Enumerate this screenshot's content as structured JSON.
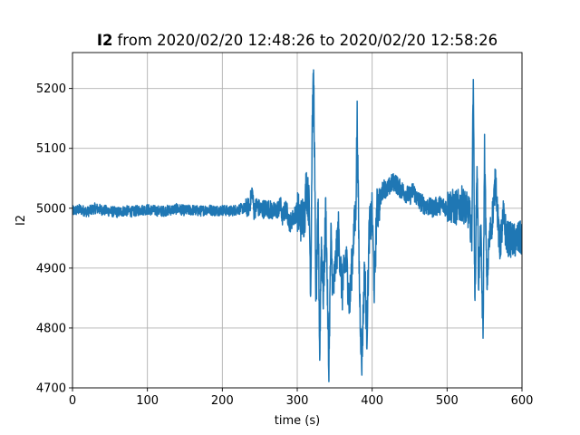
{
  "chart_data": {
    "type": "line",
    "title_bold": "I2",
    "title_rest": "from 2020/02/20 12:48:26 to 2020/02/20 12:58:26",
    "xlabel": "time (s)",
    "ylabel": "I2",
    "xlim": [
      0,
      600
    ],
    "ylim": [
      4700,
      5260
    ],
    "xticks": [
      0,
      100,
      200,
      300,
      400,
      500,
      600
    ],
    "yticks": [
      4700,
      4800,
      4900,
      5000,
      5100,
      5200
    ],
    "grid": true,
    "line_color": "#1f77b4",
    "series": [
      {
        "x": [
          0,
          10,
          20,
          30,
          40,
          50,
          60,
          70,
          80,
          90,
          100,
          110,
          120,
          130,
          140,
          150,
          160,
          170,
          180,
          190,
          200,
          210,
          220,
          230,
          236,
          240,
          242,
          246,
          250,
          260,
          270,
          278,
          280,
          285,
          290,
          300,
          305,
          310,
          312,
          316,
          318,
          320,
          322,
          325,
          328,
          330,
          332,
          335,
          338,
          340,
          342,
          345,
          348,
          350,
          355,
          360,
          365,
          370,
          375,
          378,
          380,
          383,
          386,
          390,
          393,
          396,
          400,
          403,
          406,
          410,
          415,
          420,
          425,
          430,
          435,
          440,
          445,
          450,
          455,
          460,
          470,
          480,
          490,
          500,
          505,
          510,
          515,
          520,
          525,
          530,
          533,
          535,
          537,
          540,
          542,
          545,
          548,
          550,
          553,
          556,
          560,
          565,
          570,
          575,
          580,
          590,
          600
        ],
        "y": [
          4995,
          4998,
          4994,
          5000,
          4997,
          4995,
          4993,
          4996,
          4994,
          4997,
          4998,
          4996,
          4995,
          4997,
          4999,
          4996,
          4997,
          4995,
          4998,
          4996,
          4997,
          4995,
          4998,
          5000,
          5002,
          5030,
          4995,
          5005,
          4998,
          5000,
          4994,
          5003,
          4985,
          5000,
          4975,
          4995,
          4980,
          4990,
          5040,
          5000,
          4860,
          5145,
          5215,
          4840,
          5000,
          4750,
          4950,
          4850,
          5000,
          4880,
          4730,
          4950,
          4850,
          4890,
          4960,
          4860,
          4920,
          4840,
          4950,
          4990,
          5150,
          4870,
          4740,
          4900,
          4790,
          4960,
          4990,
          4860,
          4995,
          5010,
          5035,
          5030,
          5040,
          5045,
          5035,
          5030,
          5025,
          5020,
          5030,
          5015,
          5005,
          5000,
          5005,
          5002,
          5005,
          5000,
          5002,
          5008,
          5000,
          4990,
          4950,
          5240,
          4830,
          5080,
          4880,
          4960,
          4780,
          5100,
          4870,
          4940,
          4980,
          5050,
          4930,
          4985,
          4950,
          4945,
          4950
        ]
      }
    ]
  }
}
